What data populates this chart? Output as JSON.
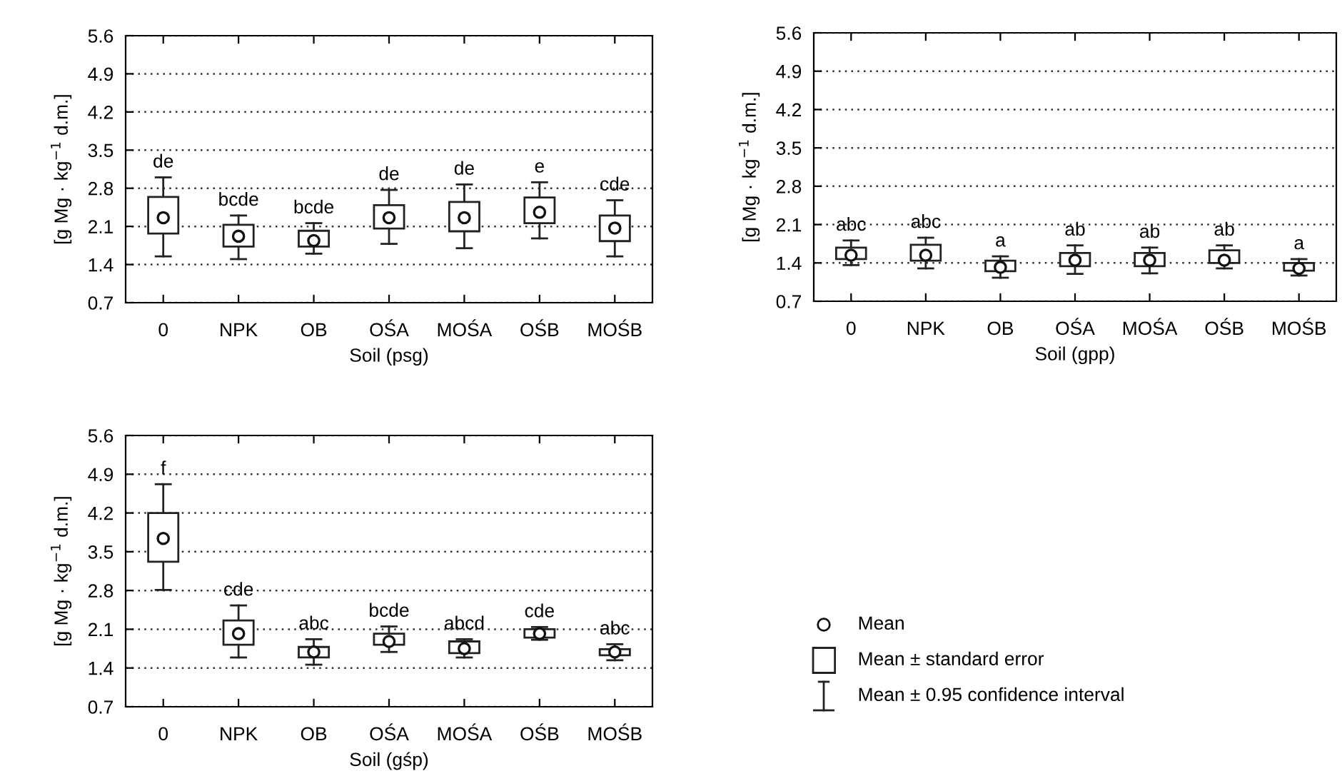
{
  "chart_data": [
    {
      "type": "box",
      "xlabel": "Soil (psg)",
      "ylabel": "[g Mg · kg$^{−1}$ d.m.]",
      "categories": [
        "0",
        "NPK",
        "OB",
        "OŚA",
        "MOŚA",
        "OŚB",
        "MOŚB"
      ],
      "ylim": [
        0.7,
        5.6
      ],
      "yticks": [
        0.7,
        1.4,
        2.1,
        2.8,
        3.5,
        4.2,
        4.9,
        5.6
      ],
      "grid": "y",
      "marker": "circle",
      "boxes": [
        {
          "low": 1.55,
          "q1": 1.97,
          "median": 2.26,
          "q3": 2.64,
          "high": 3.0
        },
        {
          "low": 1.5,
          "q1": 1.73,
          "median": 1.92,
          "q3": 2.13,
          "high": 2.3
        },
        {
          "low": 1.6,
          "q1": 1.73,
          "median": 1.84,
          "q3": 2.02,
          "high": 2.16
        },
        {
          "low": 1.78,
          "q1": 2.06,
          "median": 2.26,
          "q3": 2.49,
          "high": 2.77
        },
        {
          "low": 1.7,
          "q1": 2.01,
          "median": 2.26,
          "q3": 2.55,
          "high": 2.87
        },
        {
          "low": 1.88,
          "q1": 2.16,
          "median": 2.36,
          "q3": 2.63,
          "high": 2.91
        },
        {
          "low": 1.55,
          "q1": 1.83,
          "median": 2.07,
          "q3": 2.3,
          "high": 2.58
        }
      ],
      "annotations": [
        "de",
        "bcde",
        "bcde",
        "de",
        "de",
        "e",
        "cde"
      ]
    },
    {
      "type": "box",
      "xlabel": "Soil (gpp)",
      "ylabel": "[g Mg · kg$^{−1}$ d.m.]",
      "categories": [
        "0",
        "NPK",
        "OB",
        "OŚA",
        "MOŚA",
        "OŚB",
        "MOŚB"
      ],
      "ylim": [
        0.7,
        5.6
      ],
      "yticks": [
        0.7,
        1.4,
        2.1,
        2.8,
        3.5,
        4.2,
        4.9,
        5.6
      ],
      "grid": "y",
      "marker": "circle",
      "boxes": [
        {
          "low": 1.36,
          "q1": 1.47,
          "median": 1.54,
          "q3": 1.68,
          "high": 1.81
        },
        {
          "low": 1.3,
          "q1": 1.44,
          "median": 1.54,
          "q3": 1.73,
          "high": 1.86
        },
        {
          "low": 1.13,
          "q1": 1.25,
          "median": 1.32,
          "q3": 1.44,
          "high": 1.52
        },
        {
          "low": 1.2,
          "q1": 1.34,
          "median": 1.45,
          "q3": 1.58,
          "high": 1.72
        },
        {
          "low": 1.21,
          "q1": 1.34,
          "median": 1.45,
          "q3": 1.58,
          "high": 1.68
        },
        {
          "low": 1.3,
          "q1": 1.4,
          "median": 1.45,
          "q3": 1.63,
          "high": 1.72
        },
        {
          "low": 1.17,
          "q1": 1.26,
          "median": 1.3,
          "q3": 1.4,
          "high": 1.47
        }
      ],
      "annotations": [
        "abc",
        "abc",
        "a",
        "ab",
        "ab",
        "ab",
        "a"
      ]
    },
    {
      "type": "box",
      "xlabel": "Soil (gśp)",
      "ylabel": "[g Mg · kg$^{−1}$ d.m.]",
      "categories": [
        "0",
        "NPK",
        "OB",
        "OŚA",
        "MOŚA",
        "OŚB",
        "MOŚB"
      ],
      "ylim": [
        0.7,
        5.6
      ],
      "yticks": [
        0.7,
        1.4,
        2.1,
        2.8,
        3.5,
        4.2,
        4.9,
        5.6
      ],
      "grid": "y",
      "marker": "circle",
      "boxes": [
        {
          "low": 2.81,
          "q1": 3.32,
          "median": 3.74,
          "q3": 4.2,
          "high": 4.72
        },
        {
          "low": 1.59,
          "q1": 1.82,
          "median": 2.02,
          "q3": 2.26,
          "high": 2.53
        },
        {
          "low": 1.46,
          "q1": 1.59,
          "median": 1.69,
          "q3": 1.78,
          "high": 1.92
        },
        {
          "low": 1.69,
          "q1": 1.82,
          "median": 1.88,
          "q3": 2.02,
          "high": 2.15
        },
        {
          "low": 1.59,
          "q1": 1.67,
          "median": 1.75,
          "q3": 1.88,
          "high": 1.92
        },
        {
          "low": 1.91,
          "q1": 1.95,
          "median": 2.02,
          "q3": 2.1,
          "high": 2.14
        },
        {
          "low": 1.54,
          "q1": 1.63,
          "median": 1.69,
          "q3": 1.74,
          "high": 1.83
        }
      ],
      "annotations": [
        "f",
        "cde",
        "abc",
        "bcde",
        "abcd",
        "cde",
        "abc"
      ]
    },
    {
      "type": "other",
      "annotations": [
        "Mean",
        "Mean ± standard error",
        "Mean ± 0.95 confidence interval"
      ]
    }
  ]
}
